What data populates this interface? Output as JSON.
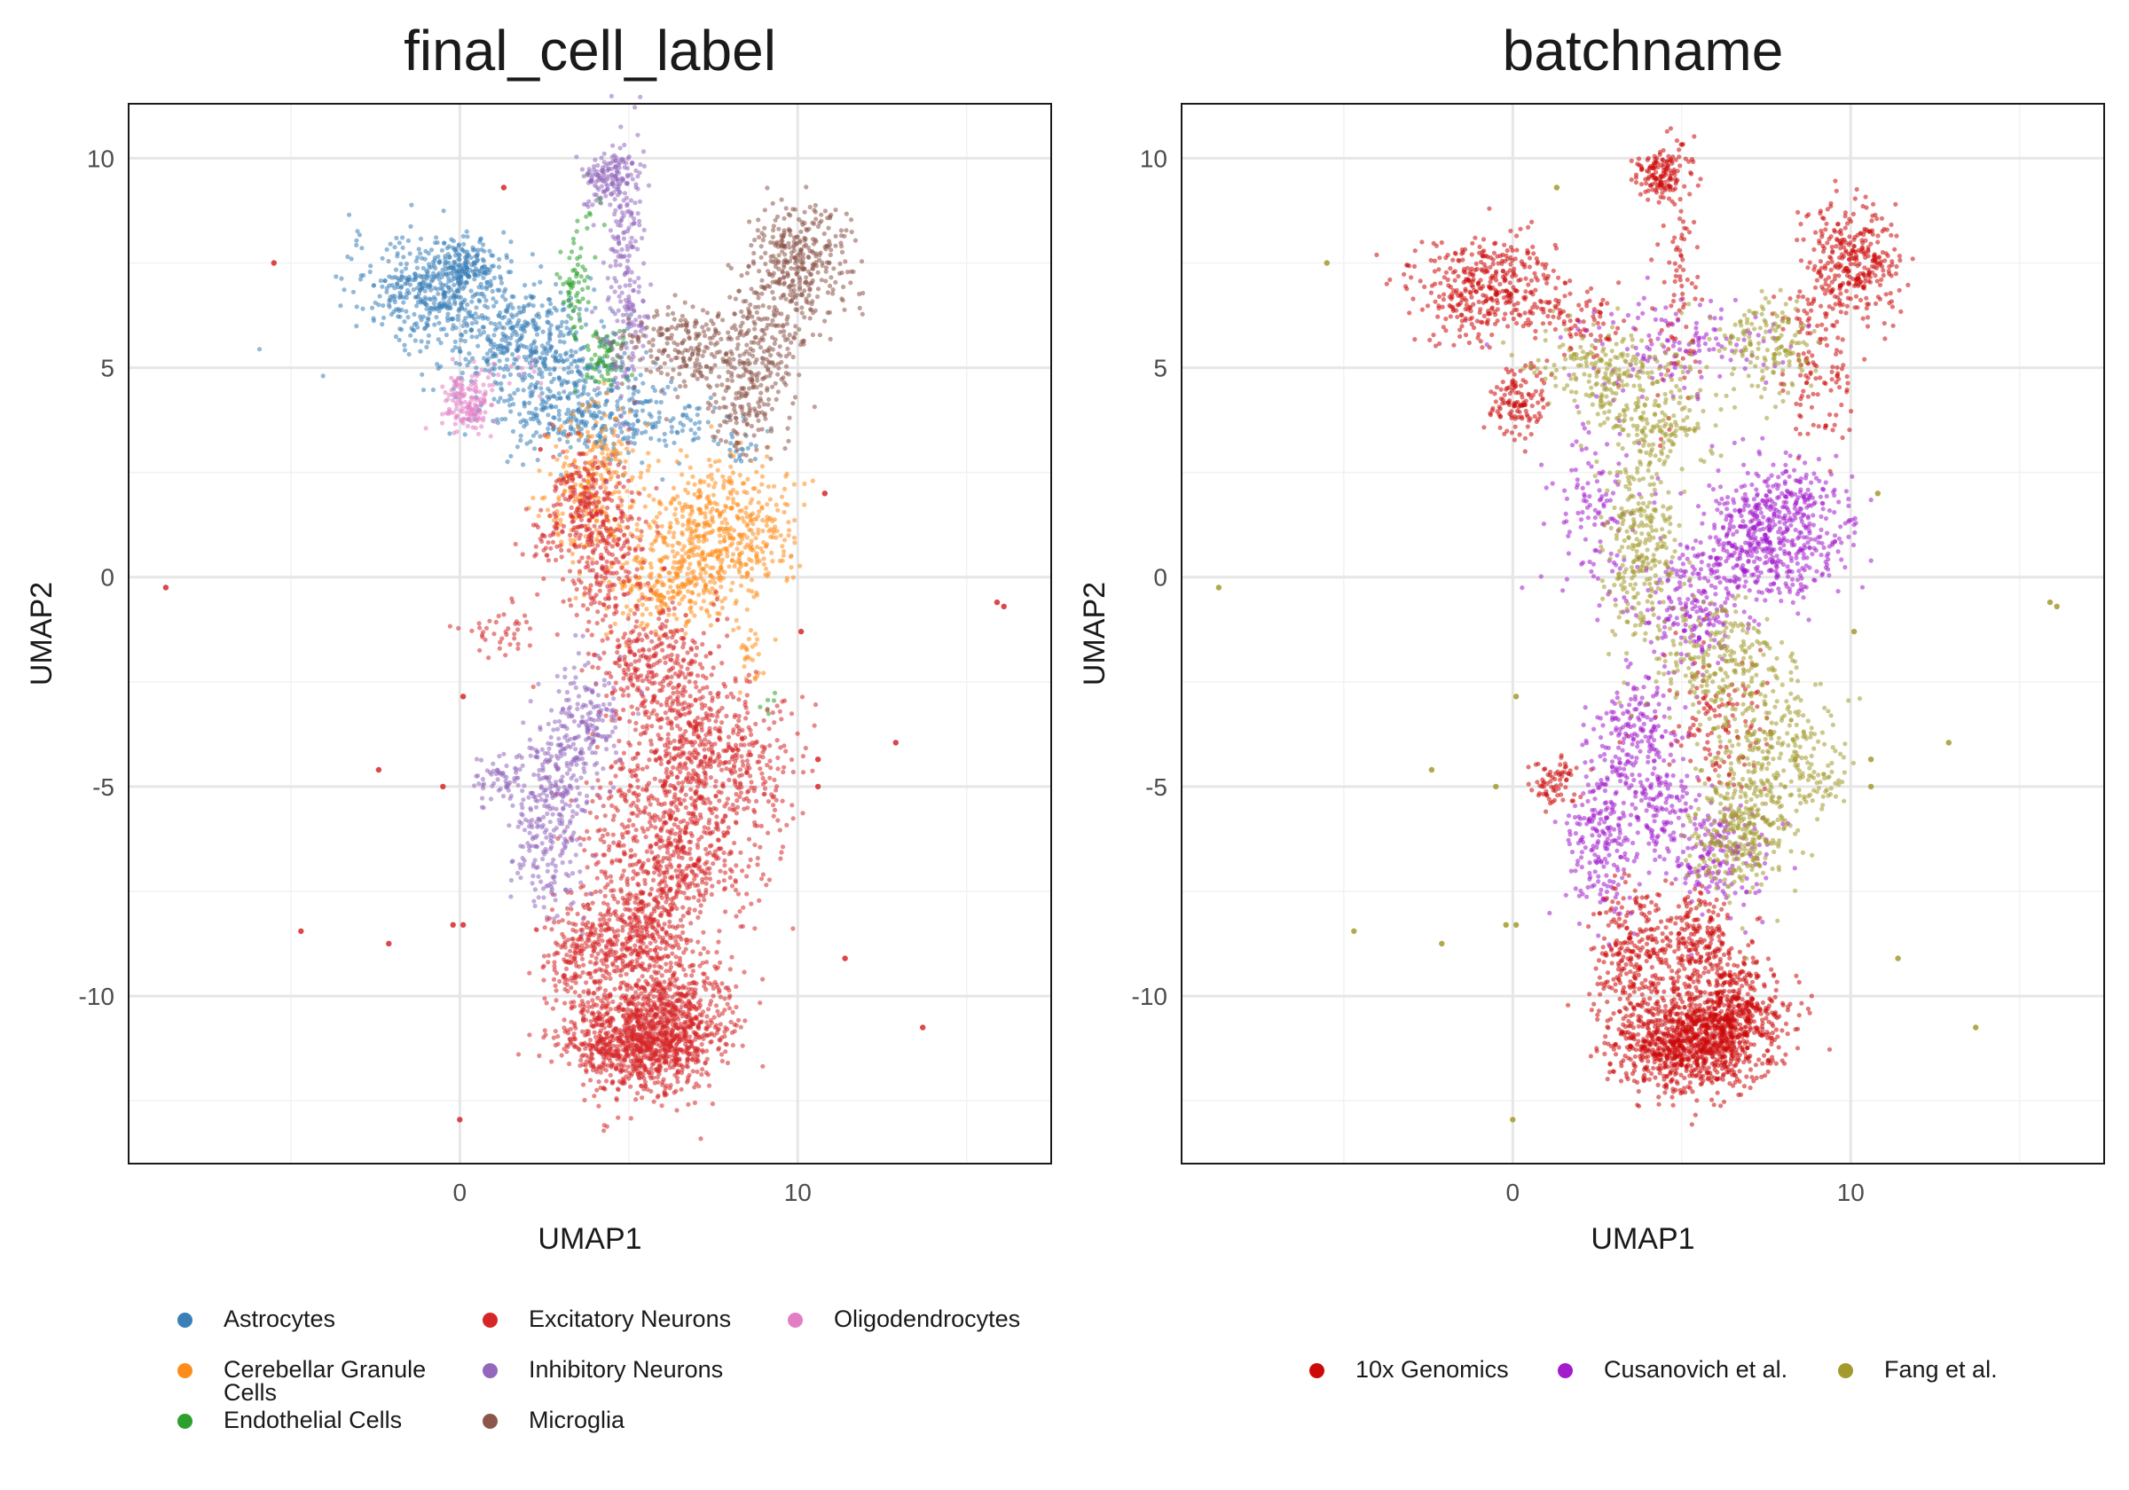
{
  "chart_data": [
    {
      "type": "scatter",
      "title": "final_cell_label",
      "xlabel": "UMAP1",
      "ylabel": "UMAP2",
      "xlim": [
        -9.8,
        17.5
      ],
      "ylim": [
        -14,
        11.3
      ],
      "xticks": [
        0,
        10
      ],
      "xtick_labels": [
        "0",
        "10"
      ],
      "yticks": [
        10,
        5,
        0,
        -5,
        -10
      ],
      "ytick_labels": [
        "10",
        "5",
        "0",
        "-5",
        "-10"
      ],
      "grid": true,
      "legend_position": "bottom",
      "series": [
        {
          "name": "Astrocytes",
          "color": "#3A7FB8",
          "clusters": [
            [
              -0.8,
              6.9,
              1.2,
              0.6,
              420
            ],
            [
              1.8,
              5.6,
              1.2,
              0.7,
              420
            ],
            [
              3.5,
              4.1,
              1.3,
              0.6,
              300
            ],
            [
              5.6,
              3.6,
              1.2,
              0.4,
              110
            ],
            [
              0.2,
              7.5,
              0.5,
              0.3,
              120
            ],
            [
              8.2,
              3.0,
              0.3,
              0.2,
              20
            ]
          ]
        },
        {
          "name": "Cerebellar Granule Cells",
          "color": "#FF8C1A",
          "clusters": [
            [
              4.1,
              2.2,
              0.8,
              0.9,
              260
            ],
            [
              7.9,
              1.6,
              1.0,
              0.6,
              260
            ],
            [
              7.1,
              0.4,
              1.2,
              0.6,
              320
            ],
            [
              5.9,
              -0.5,
              0.8,
              0.5,
              130
            ],
            [
              8.6,
              -1.9,
              0.3,
              0.6,
              30
            ]
          ]
        },
        {
          "name": "Endothelial Cells",
          "color": "#2CA02C",
          "clusters": [
            [
              3.4,
              6.9,
              0.2,
              0.6,
              60
            ],
            [
              4.3,
              5.2,
              0.3,
              0.4,
              70
            ],
            [
              3.9,
              8.9,
              0.2,
              0.4,
              10
            ],
            [
              9.0,
              -3.0,
              0.2,
              0.15,
              6
            ]
          ]
        },
        {
          "name": "Excitatory Neurons",
          "color": "#D62728",
          "clusters": [
            [
              5.2,
              -11.1,
              1.1,
              0.6,
              900
            ],
            [
              6.3,
              -10.4,
              0.9,
              0.7,
              500
            ],
            [
              3.6,
              -9.0,
              0.6,
              0.7,
              220
            ],
            [
              5.4,
              -8.6,
              0.7,
              0.6,
              300
            ],
            [
              6.2,
              -6.5,
              1.2,
              1.0,
              650
            ],
            [
              7.3,
              -4.2,
              1.2,
              0.8,
              450
            ],
            [
              6.0,
              -2.3,
              0.9,
              0.8,
              320
            ],
            [
              4.3,
              0.5,
              0.6,
              1.0,
              260
            ],
            [
              3.5,
              2.0,
              0.5,
              0.7,
              140
            ],
            [
              2.6,
              0.8,
              0.4,
              0.4,
              40
            ],
            [
              1.2,
              -1.3,
              0.6,
              0.3,
              40
            ],
            [
              8.9,
              -4.6,
              0.5,
              0.7,
              40
            ]
          ],
          "outliers": [
            [
              -5.5,
              7.5
            ],
            [
              1.3,
              9.3
            ],
            [
              -8.7,
              -0.25
            ],
            [
              15.9,
              -0.6
            ],
            [
              16.1,
              -0.7
            ],
            [
              10.8,
              2.0
            ],
            [
              10.1,
              -1.3
            ],
            [
              12.9,
              -3.95
            ],
            [
              0.1,
              -2.85
            ],
            [
              -2.4,
              -4.6
            ],
            [
              -0.5,
              -5.0
            ],
            [
              -4.7,
              -8.45
            ],
            [
              -2.1,
              -8.75
            ],
            [
              -0.2,
              -8.3
            ],
            [
              0.1,
              -8.3
            ],
            [
              0.0,
              -12.95
            ],
            [
              11.4,
              -9.1
            ],
            [
              13.7,
              -10.75
            ],
            [
              10.6,
              -4.35
            ],
            [
              10.6,
              -5.0
            ]
          ]
        },
        {
          "name": "Inhibitory Neurons",
          "color": "#9467BD",
          "clusters": [
            [
              4.4,
              9.6,
              0.4,
              0.3,
              130
            ],
            [
              4.9,
              7.0,
              0.3,
              1.7,
              220
            ],
            [
              3.7,
              -3.5,
              0.6,
              0.8,
              170
            ],
            [
              2.6,
              -6.1,
              0.5,
              1.0,
              220
            ],
            [
              1.2,
              -4.9,
              0.4,
              0.3,
              60
            ],
            [
              3.0,
              -4.6,
              0.5,
              0.6,
              90
            ]
          ]
        },
        {
          "name": "Microglia",
          "color": "#8C564B",
          "clusters": [
            [
              6.9,
              5.4,
              1.1,
              0.5,
              260
            ],
            [
              10.1,
              7.5,
              0.7,
              0.7,
              320
            ],
            [
              9.0,
              5.4,
              0.6,
              1.1,
              220
            ],
            [
              8.3,
              3.9,
              0.5,
              0.5,
              60
            ]
          ]
        },
        {
          "name": "Oligodendrocytes",
          "color": "#E27FC4",
          "clusters": [
            [
              0.2,
              4.2,
              0.4,
              0.4,
              150
            ],
            [
              1.8,
              5.0,
              0.3,
              0.3,
              10
            ]
          ]
        }
      ]
    },
    {
      "type": "scatter",
      "title": "batchname",
      "xlabel": "UMAP1",
      "ylabel": "UMAP2",
      "xlim": [
        -9.8,
        17.5
      ],
      "ylim": [
        -14,
        11.3
      ],
      "xticks": [
        0,
        10
      ],
      "xtick_labels": [
        "0",
        "10"
      ],
      "yticks": [
        10,
        5,
        0,
        -5,
        -10
      ],
      "ytick_labels": [
        "10",
        "5",
        "0",
        "-5",
        "-10"
      ],
      "grid": true,
      "legend_position": "bottom",
      "series": [
        {
          "name": "10x Genomics",
          "color": "#CC0A0A",
          "clusters": [
            [
              5.2,
              -11.1,
              1.1,
              0.6,
              900
            ],
            [
              6.3,
              -10.4,
              0.9,
              0.7,
              500
            ],
            [
              3.6,
              -9.0,
              0.6,
              0.7,
              250
            ],
            [
              4.4,
              9.6,
              0.4,
              0.3,
              140
            ],
            [
              -0.8,
              6.9,
              1.1,
              0.6,
              380
            ],
            [
              10.1,
              7.5,
              0.7,
              0.7,
              320
            ],
            [
              0.2,
              4.2,
              0.4,
              0.4,
              120
            ],
            [
              1.2,
              -4.9,
              0.4,
              0.3,
              70
            ],
            [
              5.4,
              -8.6,
              0.6,
              0.6,
              200
            ],
            [
              4.9,
              7.0,
              0.3,
              1.7,
              90
            ],
            [
              9.0,
              5.2,
              0.6,
              1.1,
              120
            ],
            [
              2.0,
              6.0,
              0.8,
              0.5,
              80
            ],
            [
              6.2,
              -3.5,
              0.8,
              0.8,
              120
            ]
          ]
        },
        {
          "name": "Cusanovich et al.",
          "color": "#A31CCC",
          "clusters": [
            [
              7.9,
              1.6,
              1.0,
              0.6,
              320
            ],
            [
              7.1,
              0.4,
              1.2,
              0.6,
              340
            ],
            [
              5.2,
              -1.0,
              0.7,
              0.6,
              140
            ],
            [
              2.6,
              -6.1,
              0.5,
              1.0,
              220
            ],
            [
              3.7,
              -3.8,
              0.6,
              0.8,
              180
            ],
            [
              6.0,
              -6.6,
              0.8,
              0.7,
              180
            ],
            [
              4.3,
              -5.6,
              0.5,
              0.5,
              100
            ],
            [
              2.5,
              1.5,
              0.8,
              1.0,
              120
            ],
            [
              5.0,
              5.5,
              1.5,
              0.6,
              140
            ]
          ]
        },
        {
          "name": "Fang et al.",
          "color": "#A39A2E",
          "clusters": [
            [
              3.8,
              0.8,
              0.6,
              1.2,
              280
            ],
            [
              6.7,
              -6.0,
              0.7,
              0.8,
              320
            ],
            [
              7.8,
              -4.0,
              0.9,
              0.8,
              220
            ],
            [
              6.1,
              -2.0,
              0.9,
              0.7,
              220
            ],
            [
              2.8,
              4.9,
              1.0,
              0.5,
              200
            ],
            [
              7.4,
              5.6,
              0.8,
              0.6,
              160
            ],
            [
              4.3,
              3.6,
              0.9,
              0.5,
              140
            ],
            [
              8.9,
              -4.9,
              0.5,
              0.5,
              50
            ]
          ],
          "outliers": [
            [
              -5.5,
              7.5
            ],
            [
              1.3,
              9.3
            ],
            [
              -8.7,
              -0.25
            ],
            [
              15.9,
              -0.6
            ],
            [
              16.1,
              -0.7
            ],
            [
              10.8,
              2.0
            ],
            [
              10.1,
              -1.3
            ],
            [
              12.9,
              -3.95
            ],
            [
              0.1,
              -2.85
            ],
            [
              -2.4,
              -4.6
            ],
            [
              -0.5,
              -5.0
            ],
            [
              -4.7,
              -8.45
            ],
            [
              -2.1,
              -8.75
            ],
            [
              -0.2,
              -8.3
            ],
            [
              0.1,
              -8.3
            ],
            [
              0.0,
              -12.95
            ],
            [
              11.4,
              -9.1
            ],
            [
              13.7,
              -10.75
            ],
            [
              10.6,
              -4.35
            ],
            [
              10.6,
              -5.0
            ]
          ]
        }
      ]
    }
  ]
}
